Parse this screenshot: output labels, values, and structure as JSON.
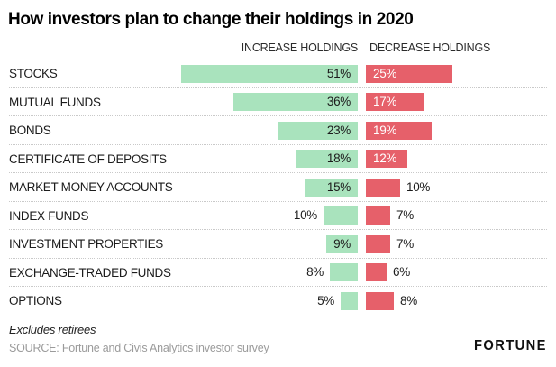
{
  "title": "How investors plan to change their holdings in 2020",
  "footer": {
    "note": "Excludes retirees",
    "source": "SOURCE: Fortune and Civis Analytics investor survey",
    "brand": "FORTUNE"
  },
  "colors": {
    "increase_bar": "#a9e3bd",
    "decrease_bar": "#e6606a",
    "label_dark": "#1c1c1c",
    "label_light": "#ffffff",
    "divider": "#c9c9c9",
    "source_text": "#9b9b9b"
  },
  "chart_data": {
    "type": "bar",
    "orientation": "horizontal_diverging",
    "title": "How investors plan to change their holdings in 2020",
    "categories": [
      "STOCKS",
      "MUTUAL FUNDS",
      "BONDS",
      "CERTIFICATE OF DEPOSITS",
      "MARKET MONEY ACCOUNTS",
      "INDEX FUNDS",
      "INVESTMENT PROPERTIES",
      "EXCHANGE-TRADED FUNDS",
      "OPTIONS"
    ],
    "series": [
      {
        "name": "INCREASE HOLDINGS",
        "values": [
          51,
          36,
          23,
          18,
          15,
          10,
          9,
          8,
          5
        ],
        "labels": [
          "51%",
          "36%",
          "23%",
          "18%",
          "15%",
          "10%",
          "9%",
          "8%",
          "5%"
        ],
        "labels_inside": [
          true,
          true,
          true,
          true,
          true,
          false,
          true,
          false,
          false
        ],
        "color": "#a9e3bd"
      },
      {
        "name": "DECREASE HOLDINGS",
        "values": [
          25,
          17,
          19,
          12,
          10,
          7,
          7,
          6,
          8
        ],
        "labels": [
          "25%",
          "17%",
          "19%",
          "12%",
          "10%",
          "7%",
          "7%",
          "6%",
          "8%"
        ],
        "labels_inside": [
          true,
          true,
          true,
          true,
          false,
          false,
          false,
          false,
          false
        ],
        "color": "#e6606a"
      }
    ],
    "value_axis": {
      "unit": "%",
      "min": 0,
      "max_shown": 51
    },
    "grid": false,
    "legend_position": "column-headers-top",
    "notes": [
      "Excludes retirees"
    ],
    "source": "SOURCE: Fortune and Civis Analytics investor survey"
  }
}
